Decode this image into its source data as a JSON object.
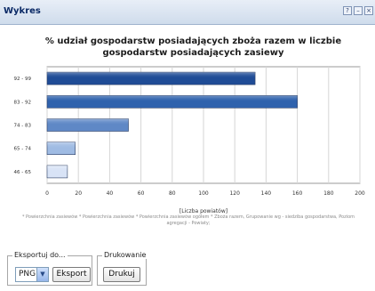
{
  "window": {
    "title": "Wykres"
  },
  "header_buttons": [
    "?",
    "–",
    "×"
  ],
  "chart_data": {
    "type": "bar",
    "orientation": "horizontal",
    "title": "% udział gospodarstw posiadających zboża razem w liczbie gospodarstw posiadających zasiewy",
    "categories": [
      "92 - 99",
      "83 - 92",
      "74 - 83",
      "65 - 74",
      "46 - 65"
    ],
    "values": [
      133,
      160,
      52,
      18,
      13
    ],
    "xlabel": "[Liczba powiatów]",
    "xlim": [
      0,
      200
    ],
    "xticks": [
      0,
      20,
      40,
      60,
      80,
      100,
      120,
      140,
      160,
      180,
      200
    ],
    "grid": true,
    "colors": [
      "#1f4c96",
      "#2f62ad",
      "#5f88c6",
      "#9fbbe3",
      "#d8e3f6"
    ]
  },
  "footnote": "* Powierzchnia zasiewów * Powierzchnia zasiewów * Powierzchnia zasiewów ogółem * Zboża razem, Grupowanie wg - siedziba gospodarstwa, Poziom agregacji - Powiaty;",
  "export": {
    "legend": "Eksportuj do...",
    "format": "PNG",
    "button": "Eksport"
  },
  "print": {
    "legend": "Drukowanie",
    "button": "Drukuj"
  }
}
